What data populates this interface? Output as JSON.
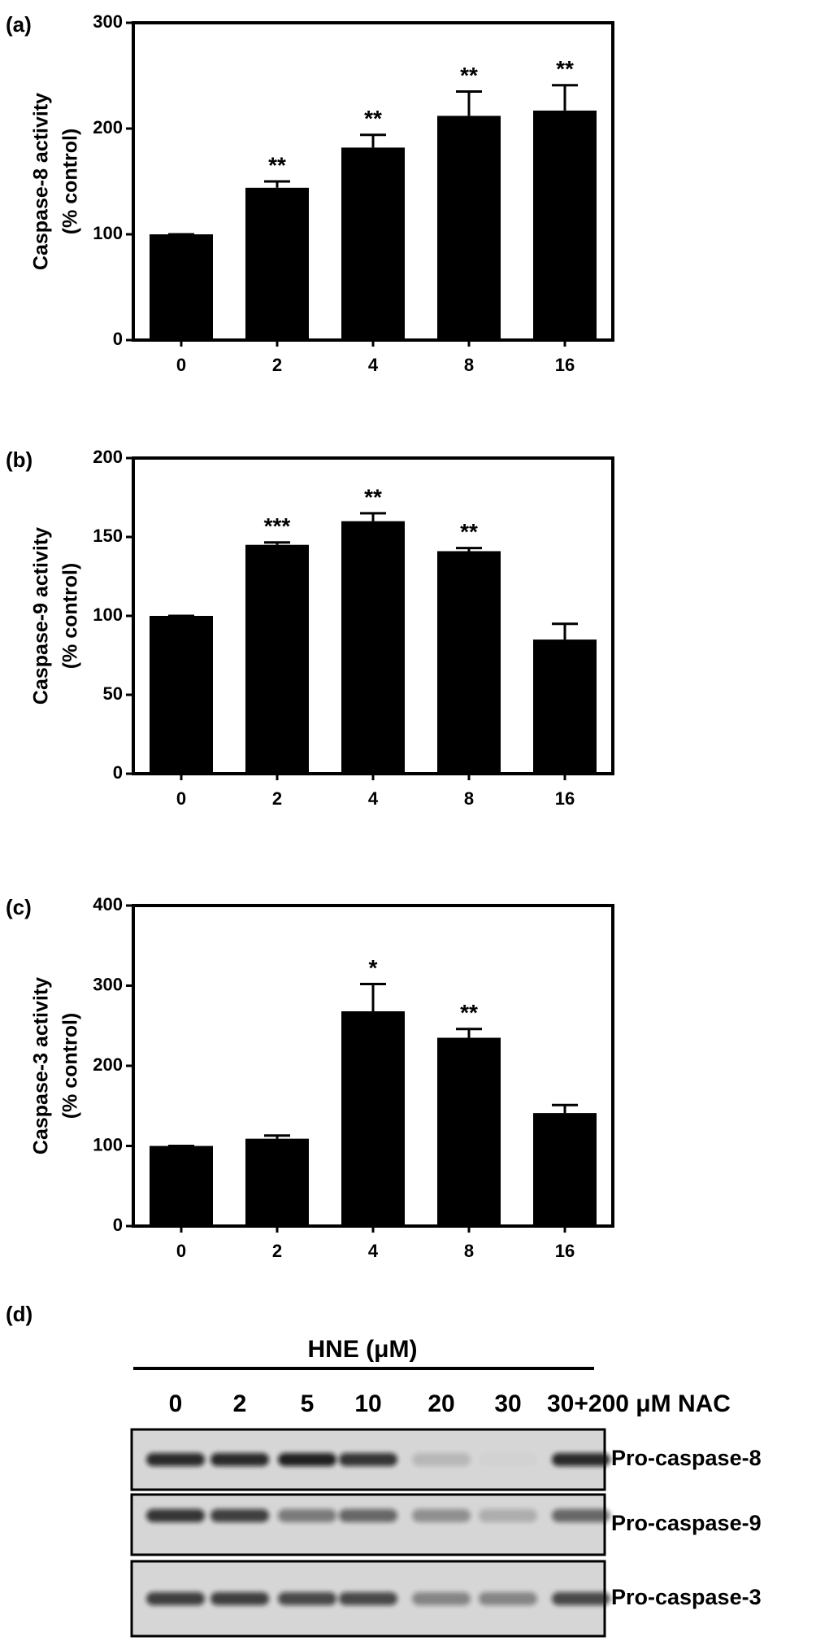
{
  "chart_data": [
    {
      "type": "bar",
      "panel_label": "(a)",
      "y_label": [
        "Caspase-8 activity",
        "(% control)"
      ],
      "categories": [
        "0",
        "2",
        "4",
        "8",
        "16"
      ],
      "values": [
        100,
        144,
        182,
        212,
        217
      ],
      "errors": [
        0,
        6,
        12,
        23,
        24
      ],
      "significance": [
        null,
        "**",
        "**",
        "**",
        "**"
      ],
      "color": "#000000",
      "ylim": [
        0,
        300
      ],
      "yticks": [
        0,
        100,
        200,
        300
      ]
    },
    {
      "type": "bar",
      "panel_label": "(b)",
      "y_label": [
        "Caspase-9 activity",
        "(% control)"
      ],
      "categories": [
        "0",
        "2",
        "4",
        "8",
        "16"
      ],
      "values": [
        100,
        145,
        160,
        141,
        85
      ],
      "errors": [
        0,
        1.5,
        5,
        2,
        10
      ],
      "significance": [
        null,
        "***",
        "**",
        "**",
        null
      ],
      "color": "#000000",
      "ylim": [
        0,
        200
      ],
      "yticks": [
        0,
        50,
        100,
        150,
        200
      ]
    },
    {
      "type": "bar",
      "panel_label": "(c)",
      "y_label": [
        "Caspase-3 activity",
        "(% control)"
      ],
      "categories": [
        "0",
        "2",
        "4",
        "8",
        "16"
      ],
      "values": [
        100,
        109,
        268,
        235,
        141
      ],
      "errors": [
        0,
        4,
        34,
        11,
        10
      ],
      "significance": [
        null,
        null,
        "*",
        "**",
        null
      ],
      "color": "#000000",
      "ylim": [
        0,
        400
      ],
      "yticks": [
        0,
        100,
        200,
        300,
        400
      ]
    }
  ],
  "blot_panel": {
    "panel_label": "(d)",
    "title": "HNE (μM)",
    "lanes": [
      "0",
      "2",
      "5",
      "10",
      "20",
      "30",
      "30+200 μM NAC"
    ],
    "bands": [
      "Pro-caspase-8",
      "Pro-caspase-9",
      "Pro-caspase-3"
    ]
  }
}
